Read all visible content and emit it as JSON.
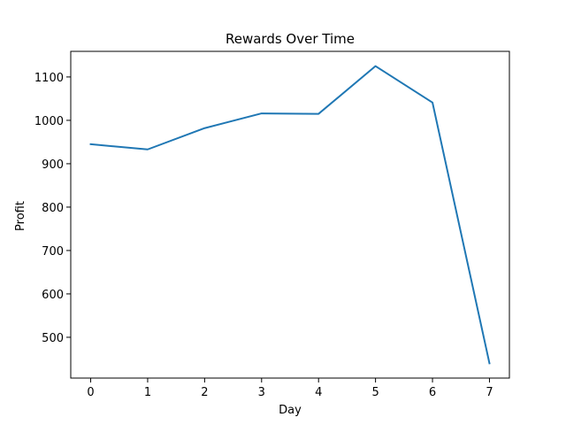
{
  "chart_data": {
    "type": "line",
    "title": "Rewards Over Time",
    "xlabel": "Day",
    "ylabel": "Profit",
    "x": [
      0,
      1,
      2,
      3,
      4,
      5,
      6,
      7
    ],
    "series": [
      {
        "values": [
          945,
          933,
          982,
          1016,
          1015,
          1125,
          1041,
          440
        ],
        "color": "#1f77b4"
      }
    ],
    "xlim": [
      -0.35,
      7.35
    ],
    "ylim": [
      406,
      1159
    ],
    "xticks": [
      0,
      1,
      2,
      3,
      4,
      5,
      6,
      7
    ],
    "yticks": [
      500,
      600,
      700,
      800,
      900,
      1000,
      1100
    ],
    "grid": false,
    "legend": false
  }
}
